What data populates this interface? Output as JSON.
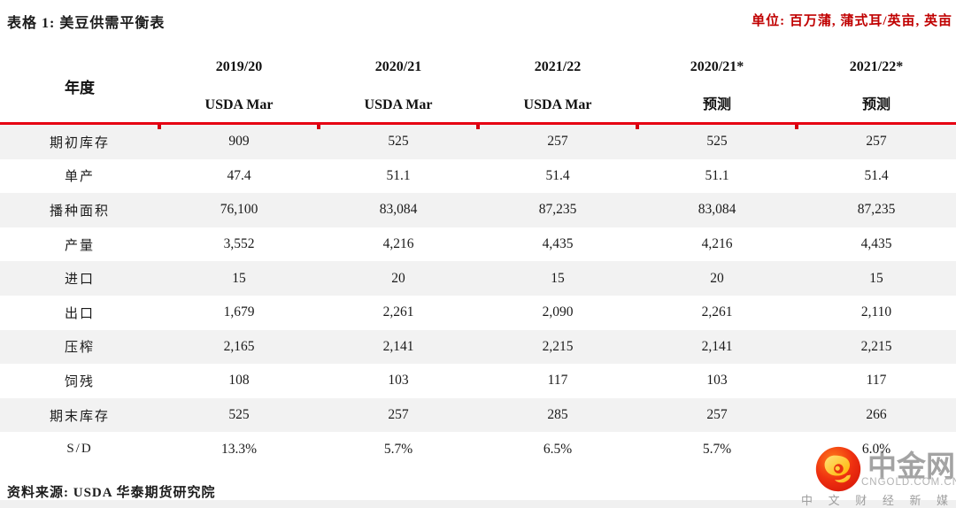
{
  "page": {
    "title": "表格 1: 美豆供需平衡表",
    "unit_note": "单位: 百万蒲, 蒲式耳/英亩, 英亩",
    "source_note": "资料来源: USDA 华泰期货研究院"
  },
  "colors": {
    "accent_red": "#e60012",
    "unit_text_red": "#c00000",
    "row_stripe_gray": "#f2f2f2",
    "text_dark": "#1a1a1a",
    "watermark_gray": "#a3a3a3"
  },
  "table": {
    "corner_label": "年度",
    "columns": [
      {
        "line1": "2019/20",
        "line2": "USDA Mar"
      },
      {
        "line1": "2020/21",
        "line2": "USDA Mar"
      },
      {
        "line1": "2021/22",
        "line2": "USDA Mar"
      },
      {
        "line1": "2020/21*",
        "line2": "预测"
      },
      {
        "line1": "2021/22*",
        "line2": "预测"
      }
    ],
    "rows": [
      {
        "label": "期初库存",
        "values": [
          "909",
          "525",
          "257",
          "525",
          "257"
        ]
      },
      {
        "label": "单产",
        "values": [
          "47.4",
          "51.1",
          "51.4",
          "51.1",
          "51.4"
        ]
      },
      {
        "label": "播种面积",
        "values": [
          "76,100",
          "83,084",
          "87,235",
          "83,084",
          "87,235"
        ]
      },
      {
        "label": "产量",
        "values": [
          "3,552",
          "4,216",
          "4,435",
          "4,216",
          "4,435"
        ]
      },
      {
        "label": "进口",
        "values": [
          "15",
          "20",
          "15",
          "20",
          "15"
        ]
      },
      {
        "label": "出口",
        "values": [
          "1,679",
          "2,261",
          "2,090",
          "2,261",
          "2,110"
        ]
      },
      {
        "label": "压榨",
        "values": [
          "2,165",
          "2,141",
          "2,215",
          "2,141",
          "2,215"
        ]
      },
      {
        "label": "饲残",
        "values": [
          "108",
          "103",
          "117",
          "103",
          "117"
        ]
      },
      {
        "label": "期末库存",
        "values": [
          "525",
          "257",
          "285",
          "257",
          "266"
        ]
      },
      {
        "label": "S/D",
        "values": [
          "13.3%",
          "5.7%",
          "6.5%",
          "5.7%",
          "6.0%"
        ]
      }
    ]
  },
  "watermark": {
    "brand": "中金网",
    "domain": "CNGOLD.COM.CN",
    "tagline": "中 文 财 经 新 媒 体",
    "icon": "cngold-cloud-icon"
  }
}
